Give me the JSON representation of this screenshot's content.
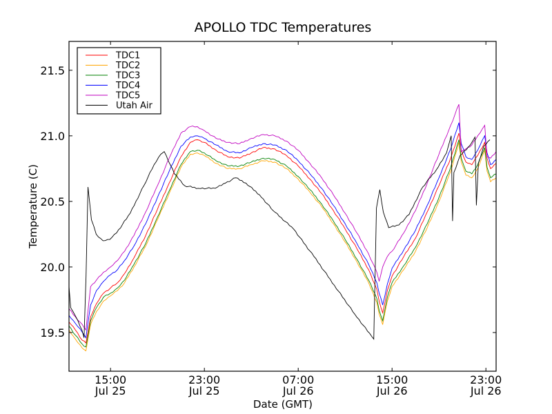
{
  "chart_data": {
    "type": "line",
    "title": "APOLLO TDC Temperatures",
    "xlabel": "Date (GMT)",
    "ylabel": "Temperature (C)",
    "x_units": "hours since 00:00 Jul 25 (GMT)",
    "xlim": [
      11.46,
      47.87
    ],
    "ylim": [
      19.205,
      21.72
    ],
    "grid": false,
    "legend_position": "top-left",
    "x_ticks": [
      {
        "value": 15,
        "label_time": "15:00",
        "label_date": "Jul 25"
      },
      {
        "value": 23,
        "label_time": "23:00",
        "label_date": "Jul 25"
      },
      {
        "value": 31,
        "label_time": "07:00",
        "label_date": "Jul 26"
      },
      {
        "value": 39,
        "label_time": "15:00",
        "label_date": "Jul 26"
      },
      {
        "value": 47,
        "label_time": "23:00",
        "label_date": "Jul 26"
      }
    ],
    "y_ticks": [
      {
        "value": 19.5,
        "label": "19.5"
      },
      {
        "value": 20.0,
        "label": "20.0"
      },
      {
        "value": 20.5,
        "label": "20.5"
      },
      {
        "value": 21.0,
        "label": "21.0"
      },
      {
        "value": 21.5,
        "label": "21.5"
      }
    ],
    "series": [
      {
        "name": "TDC1",
        "color": "#ff0000",
        "x": [
          11.46,
          12.0,
          12.6,
          12.9,
          13.3,
          13.8,
          14.4,
          15.0,
          15.6,
          16.2,
          17.0,
          18.0,
          19.0,
          20.0,
          21.0,
          21.8,
          22.4,
          23.0,
          24.0,
          25.0,
          26.0,
          27.0,
          28.0,
          29.0,
          30.0,
          31.0,
          32.0,
          33.0,
          34.0,
          35.0,
          36.0,
          37.0,
          37.7,
          37.9,
          38.2,
          38.6,
          39.0,
          40.0,
          41.0,
          42.0,
          43.0,
          44.0,
          44.7,
          44.9,
          45.3,
          45.8,
          46.3,
          46.9,
          47.1,
          47.4,
          47.87
        ],
        "y": [
          19.58,
          19.52,
          19.44,
          19.42,
          19.62,
          19.72,
          19.8,
          19.84,
          19.88,
          19.95,
          20.07,
          20.24,
          20.44,
          20.64,
          20.84,
          20.95,
          20.97,
          20.95,
          20.89,
          20.84,
          20.83,
          20.87,
          20.91,
          20.9,
          20.85,
          20.77,
          20.67,
          20.56,
          20.43,
          20.29,
          20.14,
          19.98,
          19.83,
          19.74,
          19.65,
          19.82,
          19.93,
          20.08,
          20.22,
          20.42,
          20.62,
          20.83,
          21.02,
          20.89,
          20.8,
          20.78,
          20.85,
          20.95,
          20.83,
          20.75,
          20.79
        ]
      },
      {
        "name": "TDC2",
        "color": "#ffa500",
        "x": [
          11.46,
          12.0,
          12.6,
          12.9,
          13.3,
          13.8,
          14.4,
          15.0,
          15.6,
          16.2,
          17.0,
          18.0,
          19.0,
          20.0,
          21.0,
          21.8,
          22.4,
          23.0,
          24.0,
          25.0,
          26.0,
          27.0,
          28.0,
          29.0,
          30.0,
          31.0,
          32.0,
          33.0,
          34.0,
          35.0,
          36.0,
          37.0,
          37.7,
          37.9,
          38.2,
          38.6,
          39.0,
          40.0,
          41.0,
          42.0,
          43.0,
          44.0,
          44.7,
          44.9,
          45.3,
          45.8,
          46.3,
          46.9,
          47.1,
          47.4,
          47.87
        ],
        "y": [
          19.52,
          19.45,
          19.38,
          19.36,
          19.56,
          19.66,
          19.74,
          19.78,
          19.82,
          19.88,
          20.0,
          20.16,
          20.36,
          20.56,
          20.76,
          20.86,
          20.87,
          20.85,
          20.79,
          20.75,
          20.75,
          20.78,
          20.81,
          20.8,
          20.75,
          20.67,
          20.57,
          20.46,
          20.33,
          20.19,
          20.04,
          19.88,
          19.73,
          19.64,
          19.56,
          19.74,
          19.85,
          19.98,
          20.12,
          20.3,
          20.5,
          20.73,
          20.95,
          20.8,
          20.7,
          20.68,
          20.75,
          20.89,
          20.73,
          20.65,
          20.68
        ]
      },
      {
        "name": "TDC3",
        "color": "#008000",
        "x": [
          11.46,
          12.0,
          12.6,
          12.9,
          13.3,
          13.8,
          14.4,
          15.0,
          15.6,
          16.2,
          17.0,
          18.0,
          19.0,
          20.0,
          21.0,
          21.8,
          22.4,
          23.0,
          24.0,
          25.0,
          26.0,
          27.0,
          28.0,
          29.0,
          30.0,
          31.0,
          32.0,
          33.0,
          34.0,
          35.0,
          36.0,
          37.0,
          37.7,
          37.9,
          38.2,
          38.6,
          39.0,
          40.0,
          41.0,
          42.0,
          43.0,
          44.0,
          44.7,
          44.9,
          45.3,
          45.8,
          46.3,
          46.9,
          47.1,
          47.4,
          47.87
        ],
        "y": [
          19.55,
          19.48,
          19.41,
          19.39,
          19.59,
          19.69,
          19.77,
          19.8,
          19.84,
          19.9,
          20.02,
          20.18,
          20.38,
          20.58,
          20.78,
          20.88,
          20.89,
          20.87,
          20.81,
          20.77,
          20.77,
          20.8,
          20.83,
          20.82,
          20.77,
          20.69,
          20.59,
          20.48,
          20.35,
          20.21,
          20.06,
          19.9,
          19.76,
          19.67,
          19.59,
          19.77,
          19.88,
          20.01,
          20.15,
          20.33,
          20.53,
          20.76,
          20.97,
          20.83,
          20.73,
          20.71,
          20.78,
          20.91,
          20.76,
          20.68,
          20.71
        ]
      },
      {
        "name": "TDC4",
        "color": "#0000ff",
        "x": [
          11.46,
          12.0,
          12.6,
          12.9,
          13.3,
          13.8,
          14.4,
          15.0,
          15.6,
          16.2,
          17.0,
          18.0,
          19.0,
          20.0,
          21.0,
          21.8,
          22.4,
          23.0,
          24.0,
          25.0,
          26.0,
          27.0,
          28.0,
          29.0,
          30.0,
          31.0,
          32.0,
          33.0,
          34.0,
          35.0,
          36.0,
          37.0,
          37.7,
          37.9,
          38.2,
          38.6,
          39.0,
          40.0,
          41.0,
          42.0,
          43.0,
          44.0,
          44.7,
          44.9,
          45.3,
          45.8,
          46.3,
          46.9,
          47.1,
          47.4,
          47.87
        ],
        "y": [
          19.63,
          19.57,
          19.5,
          19.46,
          19.71,
          19.82,
          19.89,
          19.94,
          19.98,
          20.05,
          20.16,
          20.33,
          20.53,
          20.73,
          20.92,
          20.99,
          21.0,
          20.98,
          20.93,
          20.88,
          20.87,
          20.91,
          20.94,
          20.93,
          20.89,
          20.81,
          20.71,
          20.6,
          20.47,
          20.33,
          20.18,
          20.02,
          19.88,
          19.8,
          19.71,
          19.87,
          19.99,
          20.13,
          20.28,
          20.47,
          20.68,
          20.9,
          21.1,
          20.94,
          20.84,
          20.82,
          20.89,
          21.0,
          20.87,
          20.78,
          20.82
        ]
      },
      {
        "name": "TDC5",
        "color": "#bf00bf",
        "x": [
          11.46,
          12.0,
          12.6,
          12.9,
          13.3,
          13.8,
          14.4,
          15.0,
          15.6,
          16.2,
          17.0,
          18.0,
          19.0,
          20.0,
          21.0,
          21.8,
          22.4,
          23.0,
          24.0,
          25.0,
          26.0,
          27.0,
          28.0,
          29.0,
          30.0,
          31.0,
          32.0,
          33.0,
          34.0,
          35.0,
          36.0,
          37.0,
          37.7,
          37.9,
          38.2,
          38.6,
          39.0,
          40.0,
          41.0,
          42.0,
          43.0,
          44.0,
          44.7,
          44.9,
          45.3,
          45.8,
          46.3,
          46.9,
          47.1,
          47.4,
          47.87
        ],
        "y": [
          19.68,
          19.62,
          19.56,
          19.52,
          19.85,
          19.9,
          19.96,
          20.0,
          20.05,
          20.12,
          20.24,
          20.42,
          20.62,
          20.83,
          21.02,
          21.07,
          21.07,
          21.04,
          20.98,
          20.95,
          20.94,
          20.98,
          21.01,
          21.0,
          20.96,
          20.89,
          20.79,
          20.68,
          20.55,
          20.41,
          20.26,
          20.1,
          19.96,
          19.89,
          20.0,
          20.08,
          20.12,
          20.26,
          20.43,
          20.64,
          20.86,
          21.08,
          21.24,
          20.88,
          20.9,
          20.93,
          21.0,
          21.08,
          20.84,
          20.83,
          20.88
        ]
      },
      {
        "name": "Utah Air",
        "color": "#000000",
        "x": [
          11.46,
          11.6,
          12.04,
          12.56,
          12.74,
          12.91,
          13.08,
          13.37,
          13.78,
          14.36,
          14.94,
          15.52,
          16.68,
          17.84,
          18.71,
          19.29,
          19.58,
          20.45,
          21.32,
          22.48,
          23.93,
          24.8,
          25.67,
          26.54,
          27.7,
          28.86,
          30.6,
          32.34,
          34.08,
          35.82,
          37.27,
          37.44,
          37.67,
          37.96,
          38.25,
          38.71,
          39.58,
          40.45,
          41.61,
          42.77,
          43.64,
          44.04,
          44.16,
          44.27,
          44.8,
          45.67,
          46.07,
          46.19,
          46.36,
          46.82,
          47.34
        ],
        "y": [
          19.85,
          19.69,
          19.62,
          19.52,
          19.46,
          19.93,
          20.61,
          20.36,
          20.25,
          20.2,
          20.21,
          20.26,
          20.41,
          20.62,
          20.78,
          20.86,
          20.88,
          20.71,
          20.62,
          20.6,
          20.6,
          20.64,
          20.68,
          20.64,
          20.55,
          20.43,
          20.29,
          20.08,
          19.86,
          19.64,
          19.47,
          19.45,
          20.45,
          20.59,
          20.42,
          20.3,
          20.32,
          20.4,
          20.61,
          20.74,
          20.87,
          21.0,
          20.35,
          20.72,
          20.85,
          20.93,
          20.99,
          20.47,
          20.79,
          20.92,
          20.97
        ]
      }
    ]
  }
}
